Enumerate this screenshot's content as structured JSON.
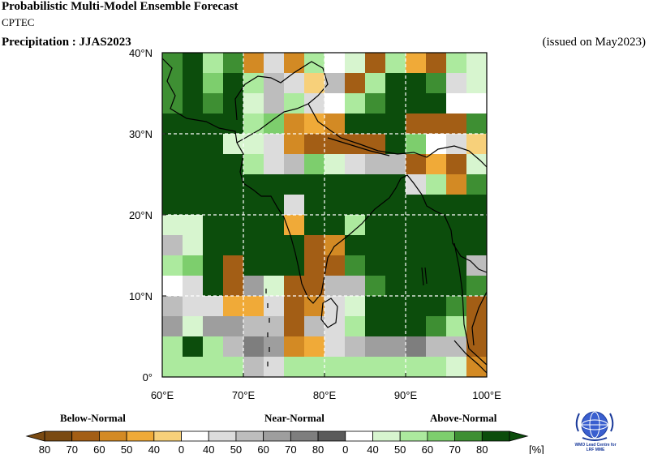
{
  "header": {
    "title": "Probabilistic Multi-Model Ensemble Forecast",
    "organization": "CPTEC",
    "variable": "Precipitation : JJAS2023",
    "issued": "(issued on May2023)"
  },
  "map": {
    "region": "South Asia",
    "lon_ticks": [
      "60°E",
      "70°E",
      "80°E",
      "90°E",
      "100°E"
    ],
    "lat_ticks": [
      "0°",
      "10°N",
      "20°N",
      "30°N",
      "40°N"
    ],
    "lon_range": [
      60,
      100
    ],
    "lat_range": [
      0,
      40
    ],
    "grid_resolution_deg": 2.5,
    "gridlines": "dashed white",
    "background_category": "A4"
  },
  "legend": {
    "categories": [
      "Below-Normal",
      "Near-Normal",
      "Above-Normal"
    ],
    "labels": [
      "80",
      "70",
      "60",
      "50",
      "40",
      "0",
      "40",
      "50",
      "60",
      "70",
      "80",
      "0",
      "40",
      "50",
      "60",
      "70",
      "80"
    ],
    "unit": "[%]",
    "colors": {
      "B4": "#7a4a12",
      "B3": "#a35e15",
      "B2": "#d38a24",
      "B1": "#f0aa38",
      "B0": "#f7d07a",
      "W": "#ffffff",
      "N0": "#dcdcdc",
      "N1": "#bdbdbd",
      "N2": "#9e9e9e",
      "N3": "#7e7e7e",
      "N4": "#5a5a5a",
      "A0": "#d7f5cf",
      "A1": "#acea9e",
      "A2": "#7dce6d",
      "A3": "#3e8f33",
      "A4": "#0c4d0c"
    },
    "swatches": [
      "B4",
      "B3",
      "B2",
      "B1",
      "B0",
      "W",
      "N0",
      "N1",
      "N2",
      "N3",
      "N4",
      "W",
      "A0",
      "A1",
      "A2",
      "A3",
      "A4"
    ]
  },
  "cells": [
    [
      60,
      37.5,
      "A3"
    ],
    [
      62.5,
      37.5,
      "A4"
    ],
    [
      65,
      37.5,
      "A1"
    ],
    [
      67.5,
      37.5,
      "A3"
    ],
    [
      70,
      37.5,
      "B2"
    ],
    [
      72.5,
      37.5,
      "N0"
    ],
    [
      75,
      37.5,
      "B2"
    ],
    [
      77.5,
      37.5,
      "A1"
    ],
    [
      80,
      37.5,
      "W"
    ],
    [
      82.5,
      37.5,
      "A0"
    ],
    [
      85,
      37.5,
      "B3"
    ],
    [
      87.5,
      37.5,
      "A1"
    ],
    [
      90,
      37.5,
      "B1"
    ],
    [
      92.5,
      37.5,
      "B3"
    ],
    [
      95,
      37.5,
      "A1"
    ],
    [
      97.5,
      37.5,
      "A0"
    ],
    [
      60,
      35,
      "A3"
    ],
    [
      62.5,
      35,
      "A4"
    ],
    [
      65,
      35,
      "A2"
    ],
    [
      67.5,
      35,
      "A4"
    ],
    [
      70,
      35,
      "A1"
    ],
    [
      72.5,
      35,
      "N1"
    ],
    [
      75,
      35,
      "N0"
    ],
    [
      77.5,
      35,
      "B0"
    ],
    [
      80,
      35,
      "N1"
    ],
    [
      82.5,
      35,
      "B3"
    ],
    [
      85,
      35,
      "A1"
    ],
    [
      87.5,
      35,
      "A4"
    ],
    [
      90,
      35,
      "A4"
    ],
    [
      92.5,
      35,
      "A3"
    ],
    [
      95,
      35,
      "N0"
    ],
    [
      97.5,
      35,
      "A0"
    ],
    [
      60,
      32.5,
      "A3"
    ],
    [
      62.5,
      32.5,
      "A4"
    ],
    [
      65,
      32.5,
      "A3"
    ],
    [
      67.5,
      32.5,
      "A4"
    ],
    [
      70,
      32.5,
      "A0"
    ],
    [
      72.5,
      32.5,
      "N1"
    ],
    [
      75,
      32.5,
      "A1"
    ],
    [
      77.5,
      32.5,
      "N0"
    ],
    [
      80,
      32.5,
      "W"
    ],
    [
      82.5,
      32.5,
      "A1"
    ],
    [
      85,
      32.5,
      "A3"
    ],
    [
      87.5,
      32.5,
      "A4"
    ],
    [
      90,
      32.5,
      "A4"
    ],
    [
      92.5,
      32.5,
      "A4"
    ],
    [
      95,
      32.5,
      "W"
    ],
    [
      97.5,
      32.5,
      "W"
    ],
    [
      70,
      30,
      "A1"
    ],
    [
      72.5,
      30,
      "A2"
    ],
    [
      75,
      30,
      "B2"
    ],
    [
      77.5,
      30,
      "B1"
    ],
    [
      80,
      30,
      "B2"
    ],
    [
      82.5,
      30,
      "A4"
    ],
    [
      85,
      30,
      "A4"
    ],
    [
      87.5,
      30,
      "A4"
    ],
    [
      90,
      30,
      "B3"
    ],
    [
      92.5,
      30,
      "B3"
    ],
    [
      95,
      30,
      "B3"
    ],
    [
      97.5,
      30,
      "A3"
    ],
    [
      67.5,
      27.5,
      "A0"
    ],
    [
      70,
      27.5,
      "A0"
    ],
    [
      72.5,
      27.5,
      "N0"
    ],
    [
      75,
      27.5,
      "B2"
    ],
    [
      77.5,
      27.5,
      "B3"
    ],
    [
      80,
      27.5,
      "B3"
    ],
    [
      82.5,
      27.5,
      "B3"
    ],
    [
      85,
      27.5,
      "B3"
    ],
    [
      87.5,
      27.5,
      "A4"
    ],
    [
      90,
      27.5,
      "A2"
    ],
    [
      92.5,
      27.5,
      "W"
    ],
    [
      95,
      27.5,
      "N0"
    ],
    [
      97.5,
      27.5,
      "B0"
    ],
    [
      70,
      25,
      "A1"
    ],
    [
      72.5,
      25,
      "N0"
    ],
    [
      75,
      25,
      "N1"
    ],
    [
      77.5,
      25,
      "A2"
    ],
    [
      80,
      25,
      "A0"
    ],
    [
      82.5,
      25,
      "N0"
    ],
    [
      85,
      25,
      "N1"
    ],
    [
      87.5,
      25,
      "N1"
    ],
    [
      90,
      25,
      "B3"
    ],
    [
      92.5,
      25,
      "B1"
    ],
    [
      95,
      25,
      "B3"
    ],
    [
      97.5,
      25,
      "A0"
    ],
    [
      90,
      22.5,
      "N0"
    ],
    [
      92.5,
      22.5,
      "A1"
    ],
    [
      95,
      22.5,
      "B2"
    ],
    [
      97.5,
      22.5,
      "A3"
    ],
    [
      75,
      20,
      "N0"
    ],
    [
      60,
      17.5,
      "A0"
    ],
    [
      62.5,
      17.5,
      "A0"
    ],
    [
      75,
      17.5,
      "B1"
    ],
    [
      82.5,
      17.5,
      "A1"
    ],
    [
      60,
      15,
      "N1"
    ],
    [
      62.5,
      15,
      "A0"
    ],
    [
      77.5,
      15,
      "B3"
    ],
    [
      80,
      15,
      "B2"
    ],
    [
      60,
      12.5,
      "A1"
    ],
    [
      62.5,
      12.5,
      "A2"
    ],
    [
      67.5,
      12.5,
      "B3"
    ],
    [
      77.5,
      12.5,
      "B3"
    ],
    [
      80,
      12.5,
      "B3"
    ],
    [
      82.5,
      12.5,
      "A3"
    ],
    [
      97.5,
      12.5,
      "N1"
    ],
    [
      60,
      10,
      "W"
    ],
    [
      62.5,
      10,
      "N0"
    ],
    [
      67.5,
      10,
      "B3"
    ],
    [
      70,
      10,
      "N2"
    ],
    [
      72.5,
      10,
      "A0"
    ],
    [
      75,
      10,
      "B3"
    ],
    [
      77.5,
      10,
      "B3"
    ],
    [
      80,
      10,
      "N1"
    ],
    [
      82.5,
      10,
      "N1"
    ],
    [
      85,
      10,
      "A3"
    ],
    [
      97.5,
      10,
      "A3"
    ],
    [
      60,
      7.5,
      "N1"
    ],
    [
      62.5,
      7.5,
      "N0"
    ],
    [
      65,
      7.5,
      "N0"
    ],
    [
      67.5,
      7.5,
      "B1"
    ],
    [
      70,
      7.5,
      "B1"
    ],
    [
      72.5,
      7.5,
      "N0"
    ],
    [
      75,
      7.5,
      "B3"
    ],
    [
      77.5,
      7.5,
      "B2"
    ],
    [
      80,
      7.5,
      "N0"
    ],
    [
      82.5,
      7.5,
      "A0"
    ],
    [
      95,
      7.5,
      "A3"
    ],
    [
      97.5,
      7.5,
      "B3"
    ],
    [
      60,
      5,
      "N2"
    ],
    [
      62.5,
      5,
      "A0"
    ],
    [
      65,
      5,
      "N2"
    ],
    [
      67.5,
      5,
      "N2"
    ],
    [
      70,
      5,
      "N1"
    ],
    [
      72.5,
      5,
      "N1"
    ],
    [
      75,
      5,
      "B3"
    ],
    [
      77.5,
      5,
      "N1"
    ],
    [
      80,
      5,
      "N0"
    ],
    [
      82.5,
      5,
      "A1"
    ],
    [
      92.5,
      5,
      "A3"
    ],
    [
      95,
      5,
      "A1"
    ],
    [
      97.5,
      5,
      "B3"
    ],
    [
      60,
      2.5,
      "A1"
    ],
    [
      62.5,
      2.5,
      "A4"
    ],
    [
      65,
      2.5,
      "A1"
    ],
    [
      67.5,
      2.5,
      "N1"
    ],
    [
      70,
      2.5,
      "N3"
    ],
    [
      72.5,
      2.5,
      "N2"
    ],
    [
      75,
      2.5,
      "B2"
    ],
    [
      77.5,
      2.5,
      "B1"
    ],
    [
      80,
      2.5,
      "N0"
    ],
    [
      82.5,
      2.5,
      "N1"
    ],
    [
      85,
      2.5,
      "N2"
    ],
    [
      87.5,
      2.5,
      "N2"
    ],
    [
      90,
      2.5,
      "N3"
    ],
    [
      92.5,
      2.5,
      "N1"
    ],
    [
      95,
      2.5,
      "N1"
    ],
    [
      97.5,
      2.5,
      "B3"
    ],
    [
      60,
      0,
      "A1"
    ],
    [
      62.5,
      0,
      "A1"
    ],
    [
      65,
      0,
      "A1"
    ],
    [
      67.5,
      0,
      "A1"
    ],
    [
      70,
      0,
      "N1"
    ],
    [
      72.5,
      0,
      "N0"
    ],
    [
      75,
      0,
      "A1"
    ],
    [
      77.5,
      0,
      "A1"
    ],
    [
      80,
      0,
      "A1"
    ],
    [
      82.5,
      0,
      "A1"
    ],
    [
      85,
      0,
      "A1"
    ],
    [
      87.5,
      0,
      "A1"
    ],
    [
      90,
      0,
      "A1"
    ],
    [
      92.5,
      0,
      "A1"
    ],
    [
      95,
      0,
      "A0"
    ],
    [
      97.5,
      0,
      "B2"
    ]
  ]
}
